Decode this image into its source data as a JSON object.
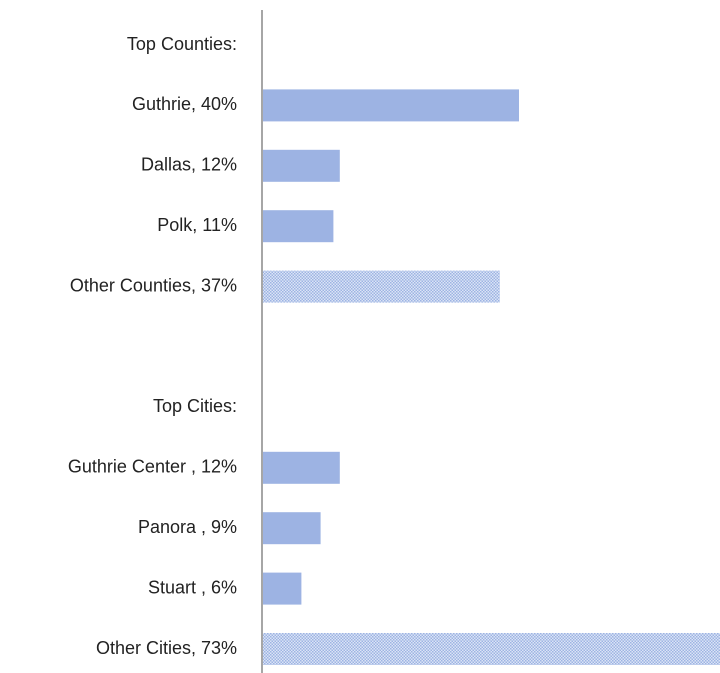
{
  "chart_data": {
    "type": "barh",
    "categories": [
      "Top Counties:",
      "Guthrie, 40%",
      "Dallas, 12%",
      "Polk, 11%",
      "Other Counties, 37%",
      null,
      "Top Cities:",
      "Guthrie Center , 12%",
      "Panora , 9%",
      "Stuart , 6%",
      "Other Cities, 73%"
    ],
    "values": [
      null,
      40,
      12,
      11,
      37,
      null,
      null,
      12,
      9,
      6,
      73
    ],
    "color": "#9db3e3",
    "fills": [
      null,
      "solid",
      "solid",
      "solid",
      "dotted",
      null,
      null,
      "solid",
      "solid",
      "solid",
      "dotted"
    ]
  }
}
